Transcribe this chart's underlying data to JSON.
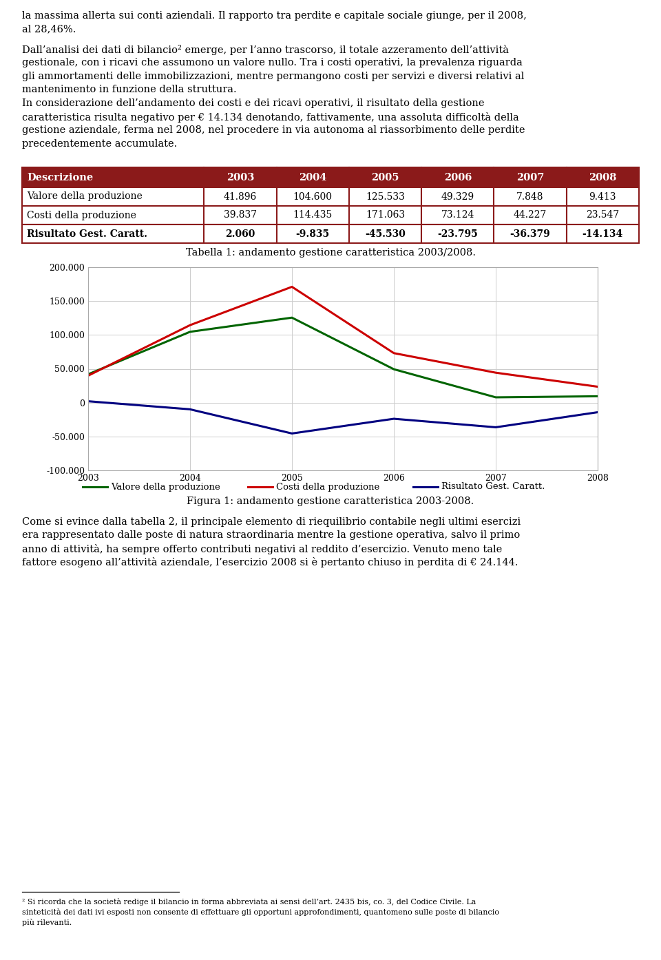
{
  "page_bg": "#ffffff",
  "text_color": "#000000",
  "font_family": "serif",
  "para1": "la massima allerta sui conti aziendali. Il rapporto tra perdite e capitale sociale giunge, per il 2008,\nal 28,46%.",
  "para2_lines": [
    "Dall’analisi dei dati di bilancio² emerge, per l’anno trascorso, il totale azzeramento dell’attività",
    "gestionale, con i ricavi che assumono un valore nullo. Tra i costi operativi, la prevalenza riguarda",
    "gli ammortamenti delle immobilizzazioni, mentre permangono costi per servizi e diversi relativi al",
    "mantenimento in funzione della struttura.",
    "In considerazione dell’andamento dei costi e dei ricavi operativi, il risultato della gestione",
    "caratteristica risulta negativo per € 14.134 denotando, fattivamente, una assoluta difficoltà della",
    "gestione aziendale, ferma nel 2008, nel procedere in via autonoma al riassorbimento delle perdite",
    "precedentemente accumulate."
  ],
  "table_header_bg": "#8b1a1a",
  "table_header_text": "#ffffff",
  "table_border_color": "#8b1a1a",
  "col_headers": [
    "Descrizione",
    "2003",
    "2004",
    "2005",
    "2006",
    "2007",
    "2008"
  ],
  "row1_label": "Valore della produzione",
  "row1_values": [
    "41.896",
    "104.600",
    "125.533",
    "49.329",
    "7.848",
    "9.413"
  ],
  "row2_label": "Costi della produzione",
  "row2_values": [
    "39.837",
    "114.435",
    "171.063",
    "73.124",
    "44.227",
    "23.547"
  ],
  "row3_label": "Risultato Gest. Caratt.",
  "row3_values": [
    "2.060",
    "-9.835",
    "-45.530",
    "-23.795",
    "-36.379",
    "-14.134"
  ],
  "table_caption": "Tabella 1: andamento gestione caratteristica 2003/2008.",
  "years": [
    2003,
    2004,
    2005,
    2006,
    2007,
    2008
  ],
  "valore_prod": [
    41896,
    104600,
    125533,
    49329,
    7848,
    9413
  ],
  "costi_prod": [
    39837,
    114435,
    171063,
    73124,
    44227,
    23547
  ],
  "risultato": [
    2060,
    -9835,
    -45530,
    -23795,
    -36379,
    -14134
  ],
  "line_color_valore": "#006400",
  "line_color_costi": "#cc0000",
  "line_color_risultato": "#000080",
  "yticks": [
    -100000,
    -50000,
    0,
    50000,
    100000,
    150000,
    200000
  ],
  "ytick_labels": [
    "-100.000",
    "-50.000",
    "0",
    "50.000",
    "100.000",
    "150.000",
    "200.000"
  ],
  "chart_caption": "Figura 1: andamento gestione caratteristica 2003-2008.",
  "legend_valore": "Valore della produzione",
  "legend_costi": "Costi della produzione",
  "legend_risultato": "Risultato Gest. Caratt.",
  "para3_lines": [
    "Come si evince dalla tabella 2, il principale elemento di riequilibrio contabile negli ultimi esercizi",
    "era rappresentato dalle poste di natura straordinaria mentre la gestione operativa, salvo il primo",
    "anno di attività, ha sempre offerto contributi negativi al reddito d’esercizio. Venuto meno tale",
    "fattore esogeno all’attività aziendale, l’esercizio 2008 si è pertanto chiuso in perdita di € 24.144."
  ],
  "footnote_lines": [
    "² Si ricorda che la società redige il bilancio in forma abbreviata ai sensi dell’art. 2435 bis, co. 3, del Codice Civile. La",
    "sinteticità dei dati ivi esposti non consente di effettuare gli opportuni approfondimenti, quantomeno sulle poste di bilancio",
    "più rilevanti."
  ]
}
